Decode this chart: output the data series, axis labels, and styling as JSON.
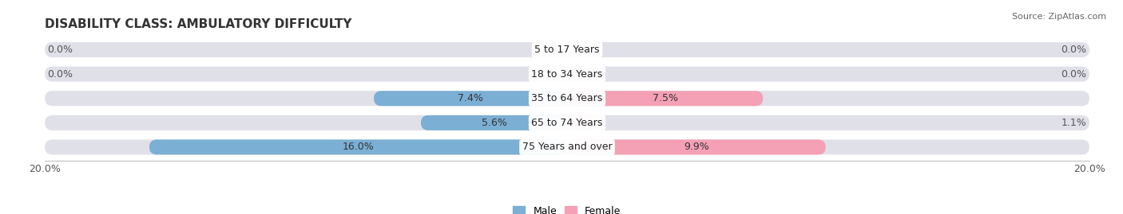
{
  "title": "DISABILITY CLASS: AMBULATORY DIFFICULTY",
  "source": "Source: ZipAtlas.com",
  "categories": [
    "5 to 17 Years",
    "18 to 34 Years",
    "35 to 64 Years",
    "65 to 74 Years",
    "75 Years and over"
  ],
  "male_values": [
    0.0,
    0.0,
    7.4,
    5.6,
    16.0
  ],
  "female_values": [
    0.0,
    0.0,
    7.5,
    1.1,
    9.9
  ],
  "male_color": "#7BAFD4",
  "female_color": "#F4A0B5",
  "bar_bg_color": "#E0E0E8",
  "max_value": 20.0,
  "bar_height": 0.62,
  "background_color": "#FFFFFF",
  "title_fontsize": 11,
  "label_fontsize": 9,
  "axis_label_fontsize": 9,
  "category_fontsize": 9,
  "inside_label_threshold": 2.5
}
